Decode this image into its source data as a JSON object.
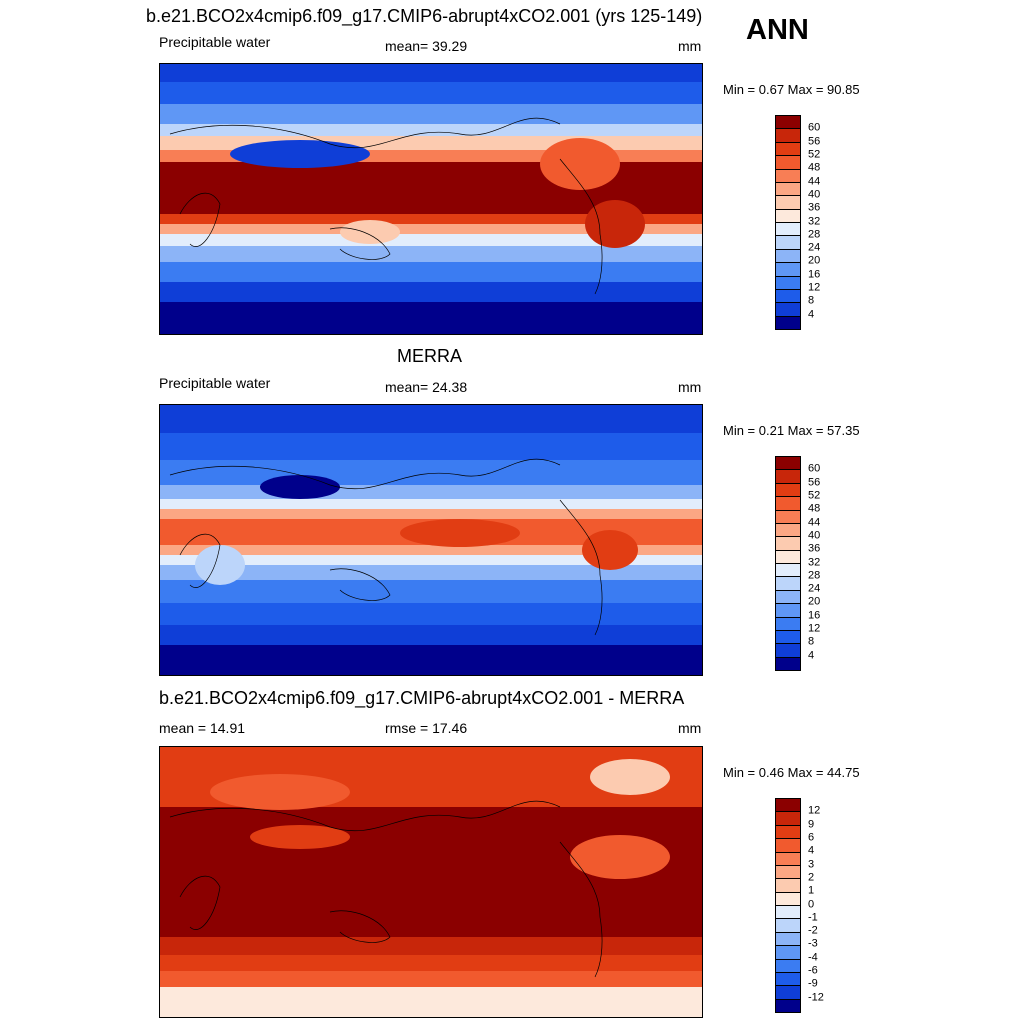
{
  "top_title": "b.e21.BCO2x4cmip6.f09_g17.CMIP6-abrupt4xCO2.001 (yrs 125-149)",
  "season": "ANN",
  "colors": {
    "abs_scale": [
      "#00008b",
      "#0a1fb4",
      "#0f3ed7",
      "#1e5cea",
      "#3b7cf2",
      "#5f97f5",
      "#8cb4f7",
      "#bcd5fa",
      "#e2edfc",
      "#fde9dc",
      "#fccbb0",
      "#fba784",
      "#f87e55",
      "#f15a2e",
      "#e13d13",
      "#c8260a",
      "#8b0000"
    ],
    "diff_scale": [
      "#00008b",
      "#0a1fb4",
      "#0f3ed7",
      "#1e5cea",
      "#3b7cf2",
      "#5f97f5",
      "#8cb4f7",
      "#bcd5fa",
      "#e2edfc",
      "#fde9dc",
      "#fccbb0",
      "#fba784",
      "#f87e55",
      "#f15a2e",
      "#e13d13",
      "#c8260a",
      "#8b0000"
    ]
  },
  "panels": [
    {
      "heading": "",
      "left_label": "Precipitable water",
      "center_label": "mean=  39.29",
      "units": "mm",
      "minmax": "Min =   0.67 Max =  90.85",
      "ticks": [
        "60",
        "56",
        "52",
        "48",
        "44",
        "40",
        "36",
        "32",
        "28",
        "24",
        "20",
        "16",
        "12",
        "8",
        "4"
      ]
    },
    {
      "heading": "MERRA",
      "left_label": "Precipitable water",
      "center_label": "mean=  24.38",
      "units": "mm",
      "minmax": "Min =   0.21 Max =  57.35",
      "ticks": [
        "60",
        "56",
        "52",
        "48",
        "44",
        "40",
        "36",
        "32",
        "28",
        "24",
        "20",
        "16",
        "12",
        "8",
        "4"
      ]
    },
    {
      "heading": "b.e21.BCO2x4cmip6.f09_g17.CMIP6-abrupt4xCO2.001 - MERRA",
      "left_label": "mean =  14.91",
      "center_label": "rmse =  17.46",
      "units": "mm",
      "minmax": "Min =   0.46 Max =  44.75",
      "ticks": [
        "12",
        "9",
        "6",
        "4",
        "3",
        "2",
        "1",
        "0",
        "-1",
        "-2",
        "-3",
        "-4",
        "-6",
        "-9",
        "-12"
      ]
    }
  ]
}
